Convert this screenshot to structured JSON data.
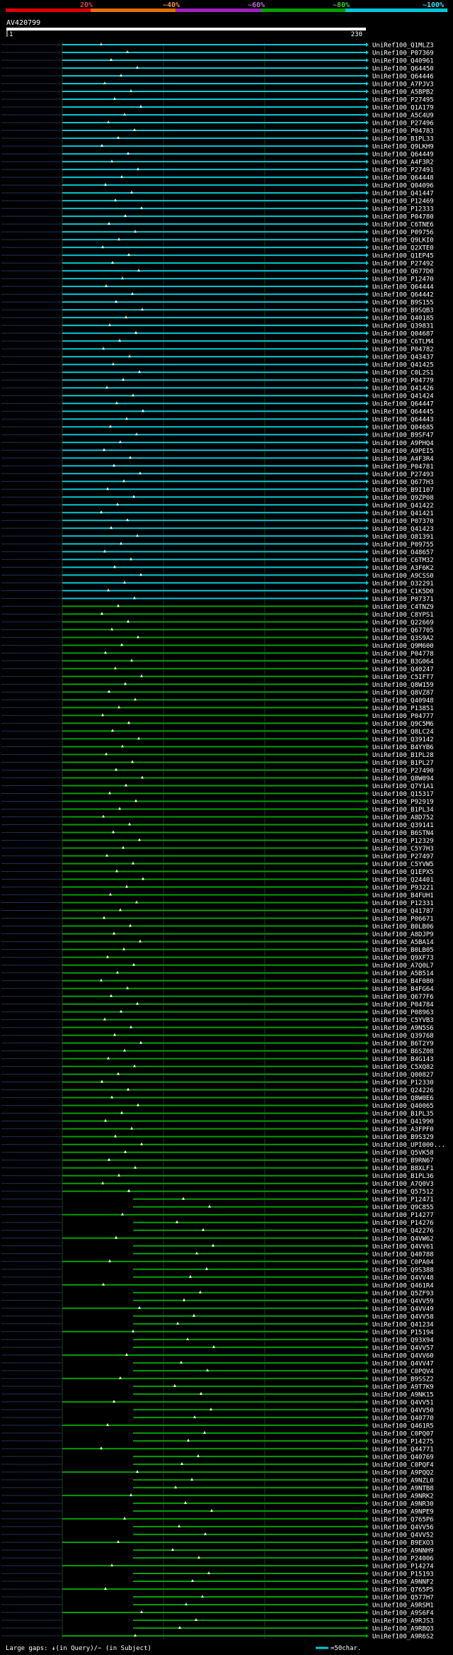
{
  "legend": {
    "labels": [
      "20%",
      "~40%",
      "~60%",
      "~80%",
      "~100%"
    ],
    "colors": [
      "#e00000",
      "#e07000",
      "#a020c0",
      "#00a000",
      "#00c8d8"
    ]
  },
  "query": {
    "id": "AV420799",
    "start_label": "1",
    "end_label": "230",
    "length": 230
  },
  "footer": {
    "gaps_text": "Large gaps: ↡(in Query)/− (in Subject)",
    "scale_text": "=50char."
  },
  "chart_data": {
    "type": "alignment-overview",
    "query_length": 230,
    "hits": [
      "UniRef100_Q1MLZ3",
      "UniRef100_P07369",
      "UniRef100_Q40961",
      "UniRef100_Q64450",
      "UniRef100_Q64446",
      "UniRef100_A7PJV3",
      "UniRef100_A5BPB2",
      "UniRef100_P27495",
      "UniRef100_Q1A179",
      "UniRef100_A5C4U9",
      "UniRef100_P27496",
      "UniRef100_P04783",
      "UniRef100_B1PL33",
      "UniRef100_Q9LKH9",
      "UniRef100_Q64449",
      "UniRef100_A4F3R2",
      "UniRef100_P27491",
      "UniRef100_Q64448",
      "UniRef100_Q04096",
      "UniRef100_Q41447",
      "UniRef100_P12469",
      "UniRef100_P12333",
      "UniRef100_P04780",
      "UniRef100_C6TNE6",
      "UniRef100_P09756",
      "UniRef100_Q9LKI0",
      "UniRef100_Q2XTE0",
      "UniRef100_Q1EP45",
      "UniRef100_P27492",
      "UniRef100_Q677D0",
      "UniRef100_P12470",
      "UniRef100_Q64444",
      "UniRef100_Q64442",
      "UniRef100_B9S155",
      "UniRef100_B9SQB3",
      "UniRef100_Q40185",
      "UniRef100_Q39831",
      "UniRef100_Q04687",
      "UniRef100_C6TLM4",
      "UniRef100_P04782",
      "UniRef100_Q43437",
      "UniRef100_Q41425",
      "UniRef100_C0L2S1",
      "UniRef100_P04779",
      "UniRef100_Q41426",
      "UniRef100_Q41424",
      "UniRef100_Q64447",
      "UniRef100_Q64445",
      "UniRef100_Q64443",
      "UniRef100_Q04685",
      "UniRef100_B9SF47",
      "UniRef100_A9PHQ4",
      "UniRef100_A9PEI5",
      "UniRef100_A4F3R4",
      "UniRef100_P04781",
      "UniRef100_P27493",
      "UniRef100_Q677H3",
      "UniRef100_B9I107",
      "UniRef100_Q9ZP08",
      "UniRef100_Q41422",
      "UniRef100_Q41421",
      "UniRef100_P07370",
      "UniRef100_Q41423",
      "UniRef100_O81391",
      "UniRef100_P09755",
      "UniRef100_O48657",
      "UniRef100_C6TM32",
      "UniRef100_A3F6K2",
      "UniRef100_A9CSS0",
      "UniRef100_O32291",
      "UniRef100_C1K5D0",
      "UniRef100_P07371",
      "UniRef100_C4TNZ9",
      "UniRef100_C8YPS1",
      "UniRef100_Q22669",
      "UniRef100_Q67705",
      "UniRef100_Q3S9A2",
      "UniRef100_Q9M600",
      "UniRef100_P04778",
      "UniRef100_B3G064",
      "UniRef100_Q40247",
      "UniRef100_C5IFT7",
      "UniRef100_Q8W159",
      "UniRef100_Q8VZ87",
      "UniRef100_Q40948",
      "UniRef100_P13851",
      "UniRef100_P04777",
      "UniRef100_Q9C5M6",
      "UniRef100_Q8LC24",
      "UniRef100_Q39142",
      "UniRef100_B4YYB6",
      "UniRef100_B1PL28",
      "UniRef100_B1PL27",
      "UniRef100_P27490",
      "UniRef100_Q8W094",
      "UniRef100_Q7Y1A1",
      "UniRef100_Q15317",
      "UniRef100_P92919",
      "UniRef100_B1PL34",
      "UniRef100_A8D752",
      "UniRef100_Q39141",
      "UniRef100_B6STN4",
      "UniRef100_P12329",
      "UniRef100_C5Y7H3",
      "UniRef100_P27497",
      "UniRef100_C5YVW5",
      "UniRef100_Q1EPX5",
      "UniRef100_Q24401",
      "UniRef100_P93221",
      "UniRef100_B4FUH1",
      "UniRef100_P12331",
      "UniRef100_Q41787",
      "UniRef100_P06671",
      "UniRef100_B0LB06",
      "UniRef100_A8DJP9",
      "UniRef100_A5BA14",
      "UniRef100_B0LB05",
      "UniRef100_Q9XF73",
      "UniRef100_A7Q0L7",
      "UniRef100_A5B514",
      "UniRef100_B4F080",
      "UniRef100_B4FG64",
      "UniRef100_Q677F6",
      "UniRef100_P04784",
      "UniRef100_P08963",
      "UniRef100_C5YVB3",
      "UniRef100_A9N5S6",
      "UniRef100_Q39768",
      "UniRef100_B6T2Y9",
      "UniRef100_B6SZ08",
      "UniRef100_B4G143",
      "UniRef100_C5XQ82",
      "UniRef100_Q00827",
      "UniRef100_P12330",
      "UniRef100_Q24226",
      "UniRef100_Q8W0E6",
      "UniRef100_Q40065",
      "UniRef100_B1PL35",
      "UniRef100_Q41990",
      "UniRef100_A3FPF0",
      "UniRef100_B9S329",
      "UniRef100_UPI000...",
      "UniRef100_Q5VK58",
      "UniRef100_B9RN67",
      "UniRef100_B8XLF1",
      "UniRef100_B1PL36",
      "UniRef100_A7Q0V3",
      "UniRef100_Q57512",
      "UniRef100_P12471",
      "UniRef100_Q9C855",
      "UniRef100_P14277",
      "UniRef100_P14276",
      "UniRef100_Q42276",
      "UniRef100_Q4VW62",
      "UniRef100_Q4VV61",
      "UniRef100_Q40788",
      "UniRef100_C0PA04",
      "UniRef100_Q9S388",
      "UniRef100_Q4VV48",
      "UniRef100_Q461R4",
      "UniRef100_Q5ZF93",
      "UniRef100_Q4VV59",
      "UniRef100_Q4VV49",
      "UniRef100_Q4VV58",
      "UniRef100_Q41234",
      "UniRef100_P15194",
      "UniRef100_Q93X94",
      "UniRef100_Q4VV57",
      "UniRef100_Q4VV60",
      "UniRef100_Q4VV47",
      "UniRef100_C0PQV4",
      "UniRef100_B9SSZ2",
      "UniRef100_A9T7K9",
      "UniRef100_A9NK15",
      "UniRef100_Q4VV51",
      "UniRef100_Q4VV50",
      "UniRef100_Q40770",
      "UniRef100_Q461R5",
      "UniRef100_C0PQ07",
      "UniRef100_P14275",
      "UniRef100_Q44771",
      "UniRef100_Q40769",
      "UniRef100_C0PQF4",
      "UniRef100_A9PQQ2",
      "UniRef100_A9NZL0",
      "UniRef100_A9NTB8",
      "UniRef100_A9NRK2",
      "UniRef100_A9NR30",
      "UniRef100_A9NPE9",
      "UniRef100_Q765P6",
      "UniRef100_Q4VV56",
      "UniRef100_Q4VV52",
      "UniRef100_B9EXO3",
      "UniRef100_A9NNH9",
      "UniRef100_P24006",
      "UniRef100_P14274",
      "UniRef100_P15193",
      "UniRef100_A9NNF2",
      "UniRef100_Q765P5",
      "UniRef100_Q577H7",
      "UniRef100_A9RSM1",
      "UniRef100_A9S6F4",
      "UniRef100_A9RJS3",
      "UniRef100_A9RBQ3",
      "UniRef100_A9R6S2"
    ]
  }
}
